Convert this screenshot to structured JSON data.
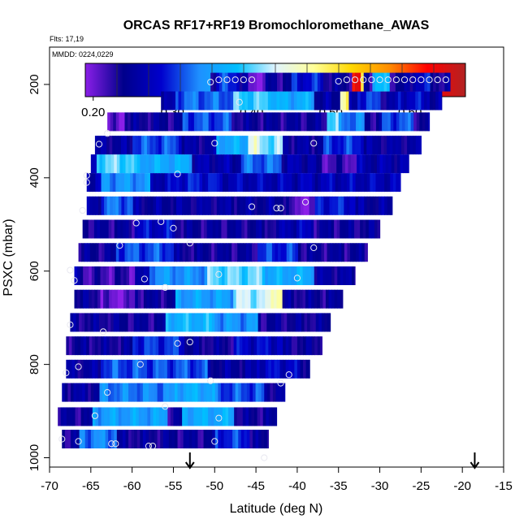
{
  "chart_data": {
    "type": "heatmap",
    "title": "ORCAS RF17+RF19 Bromochloromethane_AWAS",
    "flights_note": "Flts: 17,19",
    "date_note": "MMDD: 0224,0229",
    "xlabel": "Latitude (deg N)",
    "ylabel": "PSXC (mbar)",
    "xlim": [
      -70,
      -15
    ],
    "ylim": [
      1020,
      120
    ],
    "x_ticks": [
      -70,
      -65,
      -60,
      -55,
      -50,
      -45,
      -40,
      -35,
      -30,
      -25,
      -20,
      -15
    ],
    "y_ticks": [
      200,
      400,
      600,
      800,
      1000
    ],
    "colorbar": {
      "range": [
        0.19,
        0.67
      ],
      "ticks": [
        0.2,
        0.3,
        0.4,
        0.5,
        0.6
      ],
      "tick_labels": [
        "0.20",
        "0.30",
        "0.40",
        "0.50",
        "0.60"
      ],
      "colors": [
        "#8B1FE8",
        "#00008B",
        "#0000CD",
        "#1E90FF",
        "#00BFFF",
        "#E0F4FF",
        "#FFFF99",
        "#FFD700",
        "#FF8C00",
        "#FF0000",
        "#B22222"
      ]
    },
    "flight_markers_lat": [
      -53,
      -18.5
    ],
    "bands": [
      {
        "p": 960,
        "lat": [
          -68.5,
          -43.5
        ],
        "base": 0.24,
        "segs": [
          [
            -66.5,
            -62,
            0.33
          ],
          [
            -50,
            -46,
            0.3
          ]
        ]
      },
      {
        "p": 912,
        "lat": [
          -69.0,
          -42.5
        ],
        "base": 0.24,
        "segs": [
          [
            -65,
            -56,
            0.35
          ],
          [
            -54,
            -48,
            0.36
          ]
        ]
      },
      {
        "p": 860,
        "lat": [
          -68.5,
          -41.5
        ],
        "base": 0.25,
        "segs": [
          [
            -64,
            -55,
            0.33
          ],
          [
            -55,
            -50,
            0.36
          ],
          [
            -50,
            -44,
            0.31
          ]
        ]
      },
      {
        "p": 810,
        "lat": [
          -68.0,
          -38.5
        ],
        "base": 0.25,
        "segs": [
          [
            -64,
            -51,
            0.31
          ],
          [
            -45,
            -40,
            0.28
          ]
        ]
      },
      {
        "p": 760,
        "lat": [
          -68.0,
          -37.0
        ],
        "base": 0.24,
        "segs": [
          [
            -60,
            -54,
            0.3
          ],
          [
            -48,
            -42,
            0.28
          ]
        ]
      },
      {
        "p": 710,
        "lat": [
          -67.5,
          -36.0
        ],
        "base": 0.24,
        "segs": [
          [
            -56,
            -50,
            0.37
          ],
          [
            -50,
            -45,
            0.34
          ]
        ]
      },
      {
        "p": 660,
        "lat": [
          -67.0,
          -34.5
        ],
        "base": 0.24,
        "segs": [
          [
            -64,
            -60,
            0.2
          ],
          [
            -55,
            -48,
            0.35
          ],
          [
            -48,
            -42,
            0.42
          ],
          [
            -43.5,
            -42,
            0.48
          ]
        ]
      },
      {
        "p": 610,
        "lat": [
          -67.0,
          -33.0
        ],
        "base": 0.25,
        "segs": [
          [
            -66,
            -60,
            0.22
          ],
          [
            -58,
            -51,
            0.34
          ],
          [
            -51,
            -44,
            0.4
          ],
          [
            -44,
            -38,
            0.36
          ]
        ]
      },
      {
        "p": 560,
        "lat": [
          -66.5,
          -31.5
        ],
        "base": 0.24,
        "segs": [
          [
            -62,
            -55,
            0.31
          ],
          [
            -45,
            -40,
            0.3
          ]
        ]
      },
      {
        "p": 510,
        "lat": [
          -66.0,
          -30.0
        ],
        "base": 0.24,
        "segs": [
          [
            -60,
            -55,
            0.28
          ],
          [
            -42,
            -38,
            0.27
          ]
        ]
      },
      {
        "p": 460,
        "lat": [
          -65.5,
          -28.5
        ],
        "base": 0.25,
        "segs": [
          [
            -64,
            -60,
            0.32
          ],
          [
            -41,
            -38,
            0.2
          ],
          [
            -38,
            -33,
            0.29
          ]
        ]
      },
      {
        "p": 410,
        "lat": [
          -65.5,
          -27.5
        ],
        "base": 0.27,
        "segs": [
          [
            -64,
            -58,
            0.34
          ],
          [
            -55,
            -50,
            0.29
          ]
        ]
      },
      {
        "p": 370,
        "lat": [
          -65.0,
          -26.5
        ],
        "base": 0.26,
        "segs": [
          [
            -64.5,
            -60,
            0.4
          ],
          [
            -60,
            -53,
            0.36
          ],
          [
            -47,
            -42,
            0.32
          ],
          [
            -38,
            -33,
            0.22
          ]
        ]
      },
      {
        "p": 330,
        "lat": [
          -64.5,
          -25.0
        ],
        "base": 0.25,
        "segs": [
          [
            -60,
            -54,
            0.31
          ],
          [
            -50,
            -46,
            0.36
          ],
          [
            -46,
            -42,
            0.41
          ],
          [
            -46,
            -45,
            0.45
          ],
          [
            -37,
            -32,
            0.3
          ]
        ]
      },
      {
        "p": 280,
        "lat": [
          -63.0,
          -24.0
        ],
        "base": 0.24,
        "segs": [
          [
            -63,
            -61,
            0.2
          ],
          [
            -54,
            -48,
            0.31
          ],
          [
            -36.5,
            -35,
            0.4
          ],
          [
            -35,
            -32,
            0.33
          ],
          [
            -30,
            -26,
            0.31
          ]
        ]
      },
      {
        "p": 235,
        "lat": [
          -56.5,
          -22.5
        ],
        "base": 0.25,
        "segs": [
          [
            -55,
            -48,
            0.32
          ],
          [
            -48,
            -43,
            0.39
          ],
          [
            -43,
            -38,
            0.36
          ],
          [
            -35,
            -34,
            0.48
          ],
          [
            -33,
            -30,
            0.3
          ],
          [
            -28,
            -24,
            0.28
          ]
        ]
      },
      {
        "p": 195,
        "lat": [
          -50.5,
          -21.5
        ],
        "base": 0.24,
        "segs": [
          [
            -50,
            -47,
            0.3
          ],
          [
            -46,
            -44,
            0.2
          ],
          [
            -41,
            -37,
            0.29
          ],
          [
            -33.5,
            -32.5,
            0.62
          ],
          [
            -32.5,
            -32,
            0.5
          ],
          [
            -31,
            -29,
            0.37
          ],
          [
            -26,
            -24,
            0.28
          ]
        ]
      }
    ],
    "samples": [
      [
        -68.5,
        960
      ],
      [
        -66.5,
        965
      ],
      [
        -62.5,
        970
      ],
      [
        -62,
        970
      ],
      [
        -58,
        975
      ],
      [
        -57.5,
        975
      ],
      [
        -50,
        965
      ],
      [
        -44,
        1000
      ],
      [
        -64.5,
        910
      ],
      [
        -56,
        890
      ],
      [
        -49.5,
        915
      ],
      [
        -63,
        860
      ],
      [
        -50.5,
        835
      ],
      [
        -42,
        840
      ],
      [
        -41,
        822
      ],
      [
        -68,
        818
      ],
      [
        -66.5,
        805
      ],
      [
        -59,
        800
      ],
      [
        -54.5,
        755
      ],
      [
        -53,
        752
      ],
      [
        -63.5,
        730
      ],
      [
        -67.5,
        715
      ],
      [
        -56,
        635
      ],
      [
        -49.5,
        607
      ],
      [
        -40,
        615
      ],
      [
        -58.5,
        617
      ],
      [
        -67.5,
        598
      ],
      [
        -67,
        620
      ],
      [
        -53,
        540
      ],
      [
        -61.5,
        545
      ],
      [
        -38,
        550
      ],
      [
        -59.5,
        497
      ],
      [
        -56.5,
        494
      ],
      [
        -55,
        508
      ],
      [
        -66,
        470
      ],
      [
        -45.5,
        462
      ],
      [
        -42.5,
        465
      ],
      [
        -42,
        465
      ],
      [
        -39,
        452
      ],
      [
        -65.5,
        395
      ],
      [
        -65.5,
        410
      ],
      [
        -54.5,
        392
      ],
      [
        -64,
        328
      ],
      [
        -63,
        305
      ],
      [
        -50,
        326
      ],
      [
        -38,
        326
      ],
      [
        -47,
        238
      ],
      [
        -50.5,
        195
      ],
      [
        -49.5,
        190
      ],
      [
        -48.5,
        190
      ],
      [
        -47.5,
        190
      ],
      [
        -46.5,
        190
      ],
      [
        -45.5,
        190
      ],
      [
        -35,
        193
      ],
      [
        -34,
        190
      ],
      [
        -33,
        190
      ],
      [
        -32,
        190
      ],
      [
        -31,
        190
      ],
      [
        -30,
        190
      ],
      [
        -29,
        190
      ],
      [
        -28,
        190
      ],
      [
        -27,
        190
      ],
      [
        -26,
        190
      ],
      [
        -25,
        190
      ],
      [
        -24,
        190
      ],
      [
        -23,
        190
      ],
      [
        -22,
        190
      ]
    ]
  }
}
